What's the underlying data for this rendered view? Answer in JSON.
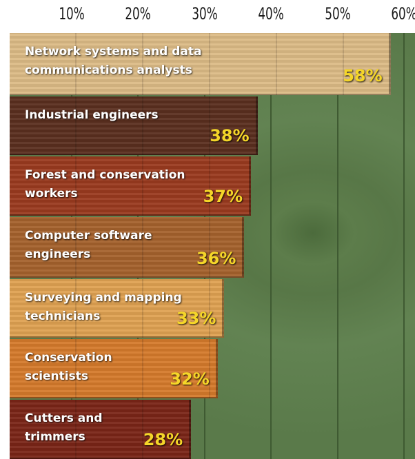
{
  "chart_data": {
    "type": "bar",
    "orientation": "horizontal",
    "categories": [
      "Network systems and data communications analysts",
      "Industrial engineers",
      "Forest and conservation workers",
      "Computer software engineers",
      "Surveying and mapping technicians",
      "Conservation scientists",
      "Cutters and trimmers"
    ],
    "values": [
      58,
      38,
      37,
      36,
      33,
      32,
      28
    ],
    "value_labels": [
      "58%",
      "38%",
      "37%",
      "36%",
      "33%",
      "32%",
      "28%"
    ],
    "colors": [
      "#dcbb86",
      "#5a2f1f",
      "#9a3a1f",
      "#a5622d",
      "#dfa152",
      "#d57a2c",
      "#7a2517"
    ],
    "xlim": [
      0,
      60
    ],
    "xticks": [
      {
        "value": 10,
        "label": "10%"
      },
      {
        "value": 20,
        "label": "20%"
      },
      {
        "value": 30,
        "label": "30%"
      },
      {
        "value": 40,
        "label": "40%"
      },
      {
        "value": 50,
        "label": "50%"
      },
      {
        "value": 60,
        "label": "60%"
      }
    ],
    "grid": true
  }
}
